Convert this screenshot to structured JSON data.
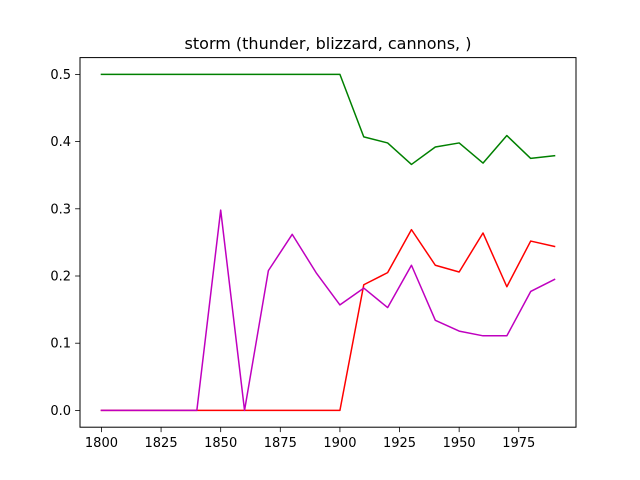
{
  "chart_data": {
    "type": "line",
    "title": "storm (thunder, blizzard, cannons, )",
    "xlabel": "",
    "ylabel": "",
    "xlim": [
      1791,
      1999
    ],
    "ylim": [
      -0.025,
      0.525
    ],
    "x_ticks": [
      1800,
      1825,
      1850,
      1875,
      1900,
      1925,
      1950,
      1975
    ],
    "x_tick_labels": [
      "1800",
      "1825",
      "1850",
      "1875",
      "1900",
      "1925",
      "1950",
      "1975"
    ],
    "y_ticks": [
      0.0,
      0.1,
      0.2,
      0.3,
      0.4,
      0.5
    ],
    "y_tick_labels": [
      "0.0",
      "0.1",
      "0.2",
      "0.3",
      "0.4",
      "0.5"
    ],
    "grid": false,
    "legend": "none",
    "x": [
      1800,
      1810,
      1820,
      1830,
      1840,
      1850,
      1860,
      1870,
      1880,
      1890,
      1900,
      1910,
      1920,
      1930,
      1940,
      1950,
      1960,
      1970,
      1980,
      1990
    ],
    "series": [
      {
        "color": "#008000",
        "values": [
          0.5,
          0.5,
          0.5,
          0.5,
          0.5,
          0.5,
          0.5,
          0.5,
          0.5,
          0.5,
          0.5,
          0.407,
          0.398,
          0.366,
          0.392,
          0.398,
          0.368,
          0.409,
          0.375,
          0.379
        ]
      },
      {
        "color": "#ff0000",
        "values": [
          0,
          0,
          0,
          0,
          0,
          0,
          0,
          0,
          0,
          0,
          0,
          0.187,
          0.205,
          0.269,
          0.216,
          0.206,
          0.264,
          0.184,
          0.252,
          0.244
        ]
      },
      {
        "color": "#bf00bf",
        "values": [
          0,
          0,
          0,
          0,
          0,
          0.298,
          0,
          0.208,
          0.262,
          0.205,
          0.157,
          0.182,
          0.153,
          0.216,
          0.134,
          0.118,
          0.111,
          0.111,
          0.177,
          0.195
        ]
      }
    ]
  }
}
